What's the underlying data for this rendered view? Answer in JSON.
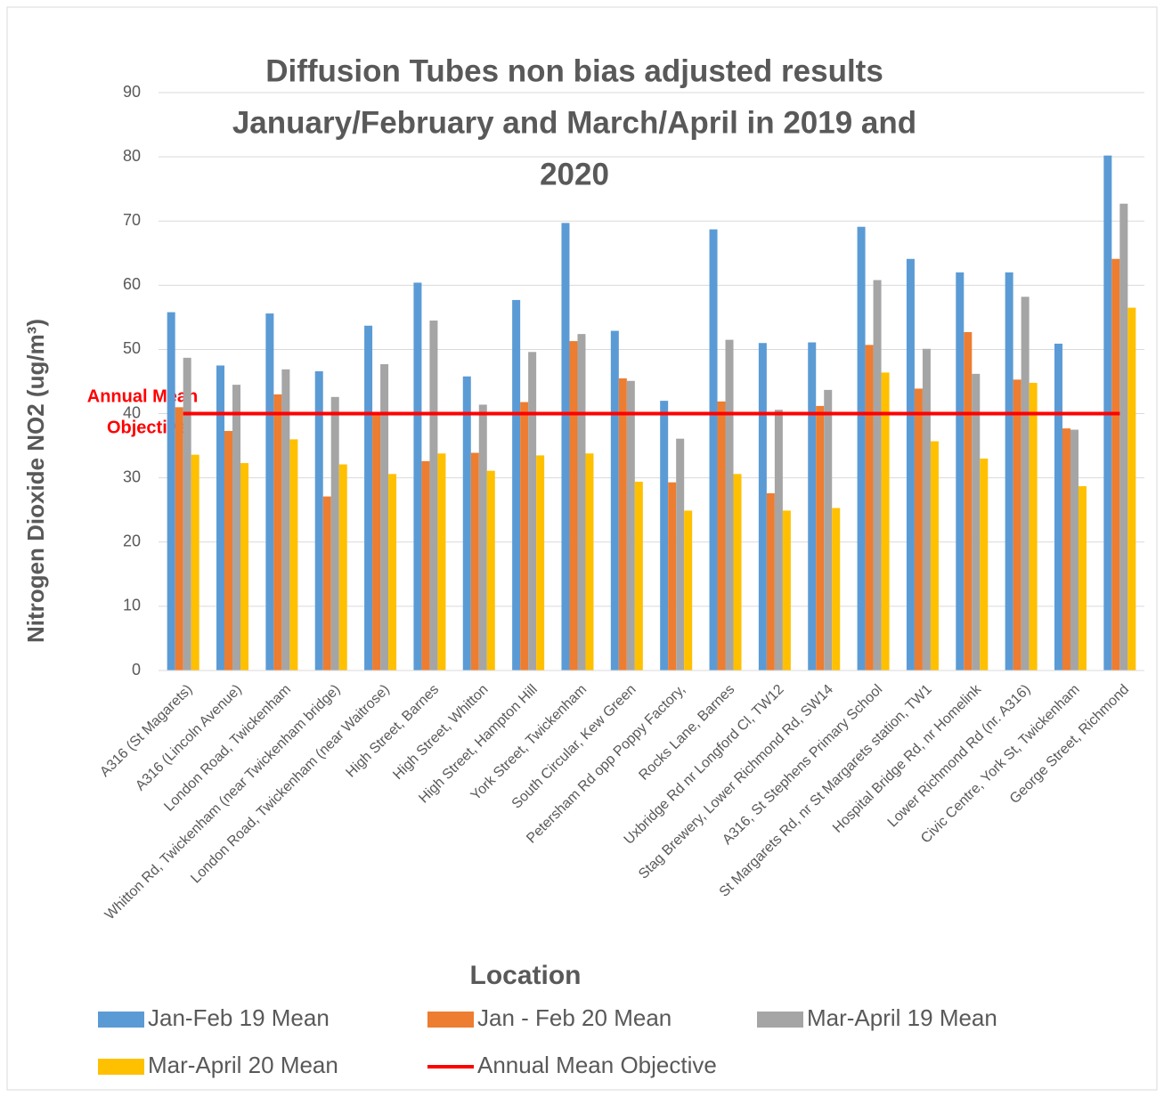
{
  "chart_data": {
    "type": "bar",
    "title": [
      "Diffusion Tubes non bias adjusted results",
      "January/February and March/April in 2019 and",
      "2020"
    ],
    "x_label": "Location",
    "y_label": "Nitrogen Dioxide NO2  (ug/m³)",
    "annotation": [
      "Annual Mean",
      "Objective"
    ],
    "categories": [
      "A316 (St Magarets)",
      "A316 (Lincoln Avenue)",
      "London Road, Twickenham",
      "Whitton Rd, Twickenham (near Twickenham bridge)",
      "London Road, Twickenham (near Waitrose)",
      "High Street, Barnes",
      "High Street, Whitton",
      "High Street, Hampton Hill",
      "York Street, Twickenham",
      "South Circular, Kew Green",
      "Petersham Rd opp Poppy Factory,",
      "Rocks Lane, Barnes",
      "Uxbridge Rd nr Longford Cl, TW12",
      "Stag Brewery, Lower Richmond Rd, SW14",
      "A316, St Stephens Primary School",
      "St Margarets Rd, nr  St Margarets station, TW1",
      "Hospital Bridge Rd, nr Homelink",
      "Lower Richmond Rd (nr. A316)",
      "Civic Centre, York St, Twickenham",
      "George Street, Richmond"
    ],
    "series": [
      {
        "name": "Jan-Feb 19 Mean",
        "color": "#5b9bd5",
        "values": [
          55.8,
          47.5,
          55.6,
          46.6,
          53.7,
          60.4,
          45.8,
          57.7,
          69.7,
          52.9,
          42.0,
          68.7,
          51.0,
          51.1,
          69.1,
          64.1,
          62.0,
          62.0,
          50.9,
          80.2
        ]
      },
      {
        "name": "Jan - Feb 20 Mean",
        "color": "#ed7d31",
        "values": [
          41.0,
          37.3,
          43.0,
          27.1,
          40.0,
          32.6,
          33.9,
          41.8,
          51.3,
          45.5,
          29.3,
          41.9,
          27.6,
          41.2,
          50.7,
          43.9,
          52.7,
          45.3,
          37.7,
          64.1
        ]
      },
      {
        "name": "Mar-April 19 Mean",
        "color": "#a5a5a5",
        "values": [
          48.7,
          44.5,
          46.9,
          42.6,
          47.7,
          54.5,
          41.4,
          49.6,
          52.4,
          45.1,
          36.1,
          51.5,
          40.6,
          43.7,
          60.8,
          50.1,
          46.2,
          58.2,
          37.5,
          72.7
        ]
      },
      {
        "name": "Mar-April 20 Mean",
        "color": "#ffc000",
        "values": [
          33.6,
          32.3,
          36.0,
          32.1,
          30.6,
          33.8,
          31.1,
          33.5,
          33.8,
          29.4,
          24.9,
          30.6,
          24.9,
          25.3,
          46.4,
          35.7,
          33.0,
          44.8,
          28.7,
          56.5
        ]
      },
      {
        "name": "Annual Mean Objective",
        "color": "#ff0000",
        "type": "line",
        "values": [
          40,
          40,
          40,
          40,
          40,
          40,
          40,
          40,
          40,
          40,
          40,
          40,
          40,
          40,
          40,
          40,
          40,
          40,
          40,
          40
        ]
      }
    ],
    "ylim": [
      0,
      90
    ],
    "yticks": [
      0,
      10,
      20,
      30,
      40,
      50,
      60,
      70,
      80,
      90
    ],
    "grid": true
  }
}
